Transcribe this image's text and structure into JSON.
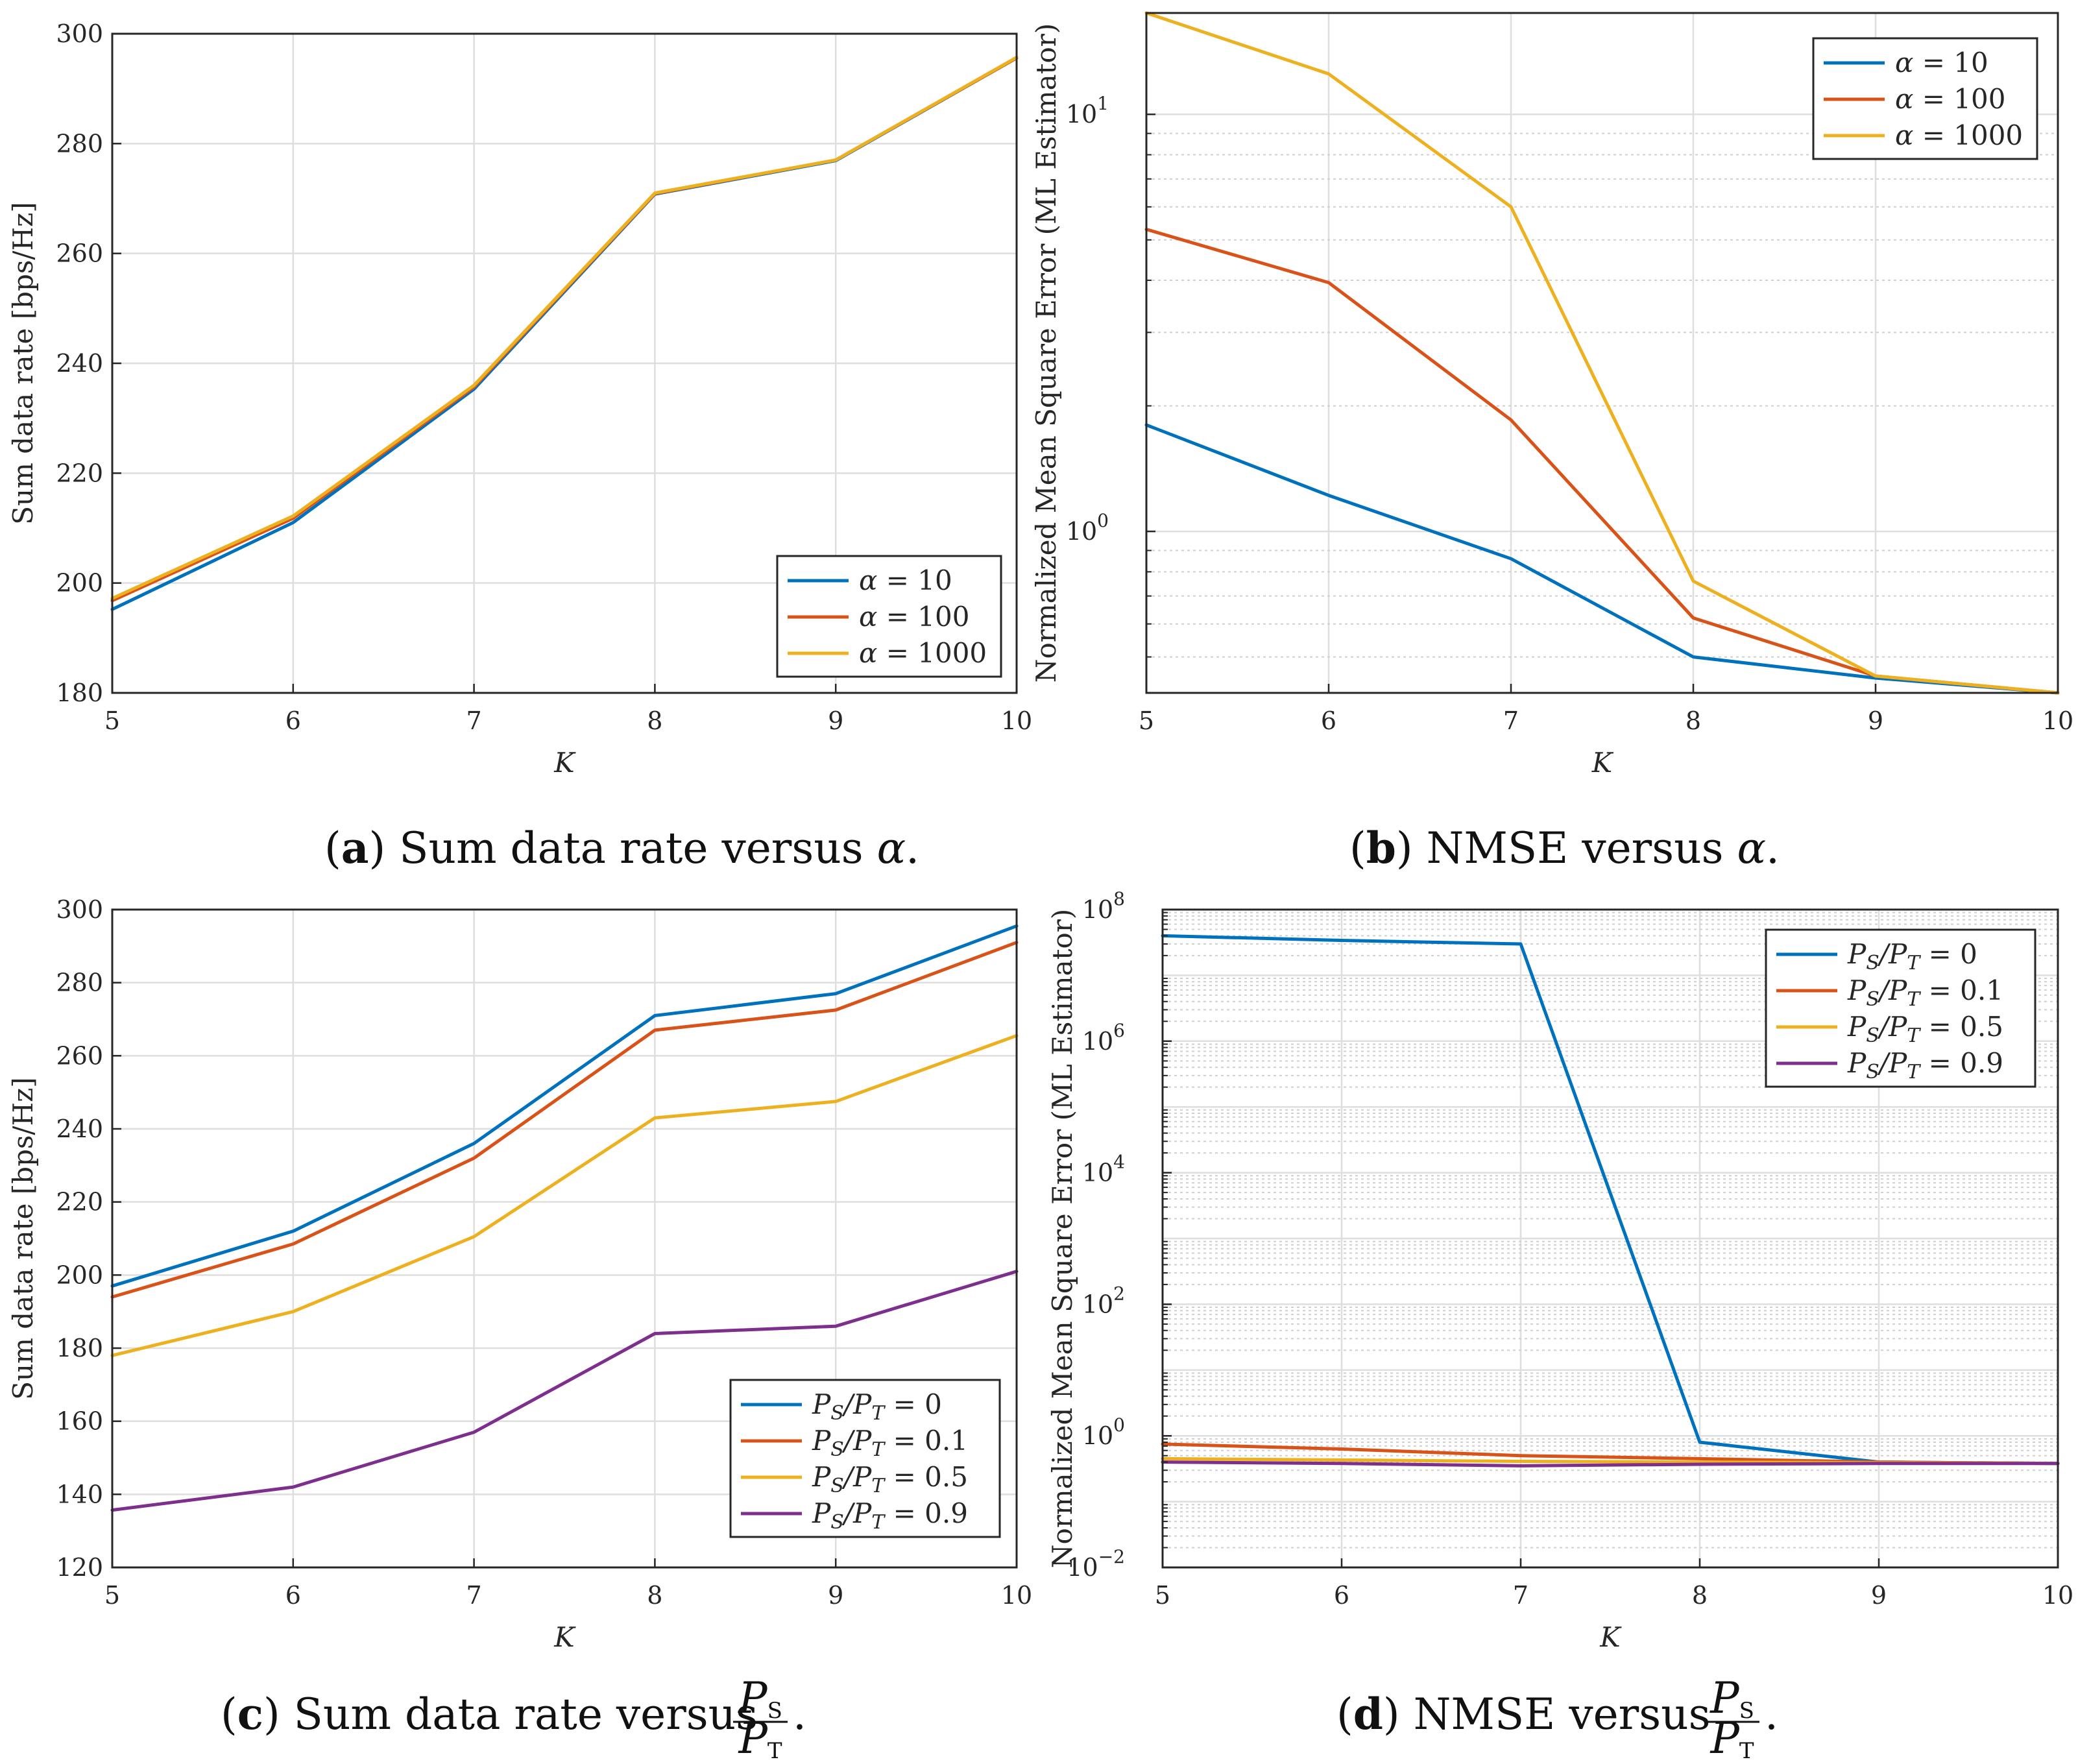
{
  "captions": [
    {
      "letter": "a",
      "text": "Sum data rate versus",
      "symbol": "α",
      "end": "."
    },
    {
      "letter": "b",
      "text": "NMSE versus",
      "symbol": "α",
      "end": "."
    },
    {
      "letter": "c",
      "text": "Sum data rate versus",
      "num": "P",
      "num_sub": "S",
      "den": "P",
      "den_sub": "T",
      "end": "."
    },
    {
      "letter": "d",
      "text": "NMSE versus",
      "num": "P",
      "num_sub": "S",
      "den": "P",
      "den_sub": "T",
      "end": "."
    }
  ],
  "chart_data": [
    {
      "id": "a",
      "type": "line",
      "xlabel": "K",
      "ylabel": "Sum data rate [bps/Hz]",
      "yscale": "linear",
      "xlim": [
        5,
        10
      ],
      "ylim": [
        180,
        300
      ],
      "xticks": [
        "5",
        "6",
        "7",
        "8",
        "9",
        "10"
      ],
      "yticks": [
        "180",
        "200",
        "220",
        "240",
        "260",
        "280",
        "300"
      ],
      "grid": true,
      "legend_position": "bottom-right",
      "x": [
        5,
        6,
        7,
        8,
        9,
        10
      ],
      "series": [
        {
          "name": "α = 10",
          "color": "#0072BD",
          "values": [
            195.2,
            211.0,
            235.3,
            270.8,
            276.9,
            295.6
          ]
        },
        {
          "name": "α = 100",
          "color": "#D95319",
          "values": [
            196.8,
            211.8,
            235.7,
            270.9,
            277.0,
            295.6
          ]
        },
        {
          "name": "α = 1000",
          "color": "#EDB120",
          "values": [
            197.2,
            212.2,
            236.0,
            271.0,
            277.0,
            295.7
          ]
        }
      ]
    },
    {
      "id": "b",
      "type": "line",
      "xlabel": "K",
      "ylabel": "Normalized Mean Square Error (ML Estimator)",
      "yscale": "log",
      "xlim": [
        5,
        10
      ],
      "ylim": [
        0.41,
        17.5
      ],
      "xticks": [
        "5",
        "6",
        "7",
        "8",
        "9",
        "10"
      ],
      "yticks": [
        {
          "base": "10",
          "exp": "0",
          "value": 1
        },
        {
          "base": "10",
          "exp": "1",
          "value": 10
        }
      ],
      "grid": true,
      "legend_position": "top-right",
      "x": [
        5,
        6,
        7,
        8,
        9,
        10
      ],
      "series": [
        {
          "name": "α = 10",
          "color": "#0072BD",
          "values": [
            1.8,
            1.22,
            0.86,
            0.5,
            0.445,
            0.41
          ]
        },
        {
          "name": "α = 100",
          "color": "#D95319",
          "values": [
            5.3,
            3.95,
            1.85,
            0.62,
            0.45,
            0.41
          ]
        },
        {
          "name": "α = 1000",
          "color": "#EDB120",
          "values": [
            17.5,
            12.5,
            6.0,
            0.76,
            0.45,
            0.41
          ]
        }
      ]
    },
    {
      "id": "c",
      "type": "line",
      "xlabel": "K",
      "ylabel": "Sum data rate [bps/Hz]",
      "yscale": "linear",
      "xlim": [
        5,
        10
      ],
      "ylim": [
        120,
        300
      ],
      "xticks": [
        "5",
        "6",
        "7",
        "8",
        "9",
        "10"
      ],
      "yticks": [
        "120",
        "140",
        "160",
        "180",
        "200",
        "220",
        "240",
        "260",
        "280",
        "300"
      ],
      "grid": true,
      "legend_position": "bottom-right",
      "x": [
        5,
        6,
        7,
        8,
        9,
        10
      ],
      "series": [
        {
          "name": "PS/PT = 0",
          "color": "#0072BD",
          "values": [
            197.0,
            212.0,
            236.0,
            271.0,
            277.0,
            295.5
          ]
        },
        {
          "name": "PS/PT = 0.1",
          "color": "#D95319",
          "values": [
            194.0,
            208.5,
            232.0,
            267.0,
            272.5,
            291.0
          ]
        },
        {
          "name": "PS/PT = 0.5",
          "color": "#EDB120",
          "values": [
            178.0,
            190.0,
            210.5,
            243.0,
            247.5,
            265.5
          ]
        },
        {
          "name": "PS/PT = 0.9",
          "color": "#7E2F8E",
          "values": [
            135.7,
            142.0,
            157.0,
            184.0,
            186.0,
            201.0
          ]
        }
      ]
    },
    {
      "id": "d",
      "type": "line",
      "xlabel": "K",
      "ylabel": "Normalized Mean Square Error (ML Estimator)",
      "yscale": "log",
      "xlim": [
        5,
        10
      ],
      "ylim": [
        0.01,
        100000000
      ],
      "xticks": [
        "5",
        "6",
        "7",
        "8",
        "9",
        "10"
      ],
      "yticks": [
        {
          "base": "10",
          "exp": "−2",
          "value": 0.01
        },
        {
          "base": "10",
          "exp": "0",
          "value": 1
        },
        {
          "base": "10",
          "exp": "2",
          "value": 100
        },
        {
          "base": "10",
          "exp": "4",
          "value": 10000
        },
        {
          "base": "10",
          "exp": "6",
          "value": 1000000
        },
        {
          "base": "10",
          "exp": "8",
          "value": 100000000
        }
      ],
      "grid": true,
      "legend_position": "top-right",
      "x": [
        5,
        6,
        7,
        8,
        9,
        10
      ],
      "series": [
        {
          "name": "PS/PT = 0",
          "color": "#0072BD",
          "values": [
            40000000,
            34000000,
            30000000,
            0.8,
            0.4,
            0.38
          ]
        },
        {
          "name": "PS/PT = 0.1",
          "color": "#D95319",
          "values": [
            0.75,
            0.63,
            0.5,
            0.45,
            0.4,
            0.38
          ]
        },
        {
          "name": "PS/PT = 0.5",
          "color": "#EDB120",
          "values": [
            0.45,
            0.43,
            0.41,
            0.4,
            0.39,
            0.38
          ]
        },
        {
          "name": "PS/PT = 0.9",
          "color": "#7E2F8E",
          "values": [
            0.4,
            0.38,
            0.35,
            0.37,
            0.38,
            0.38
          ]
        }
      ]
    }
  ]
}
